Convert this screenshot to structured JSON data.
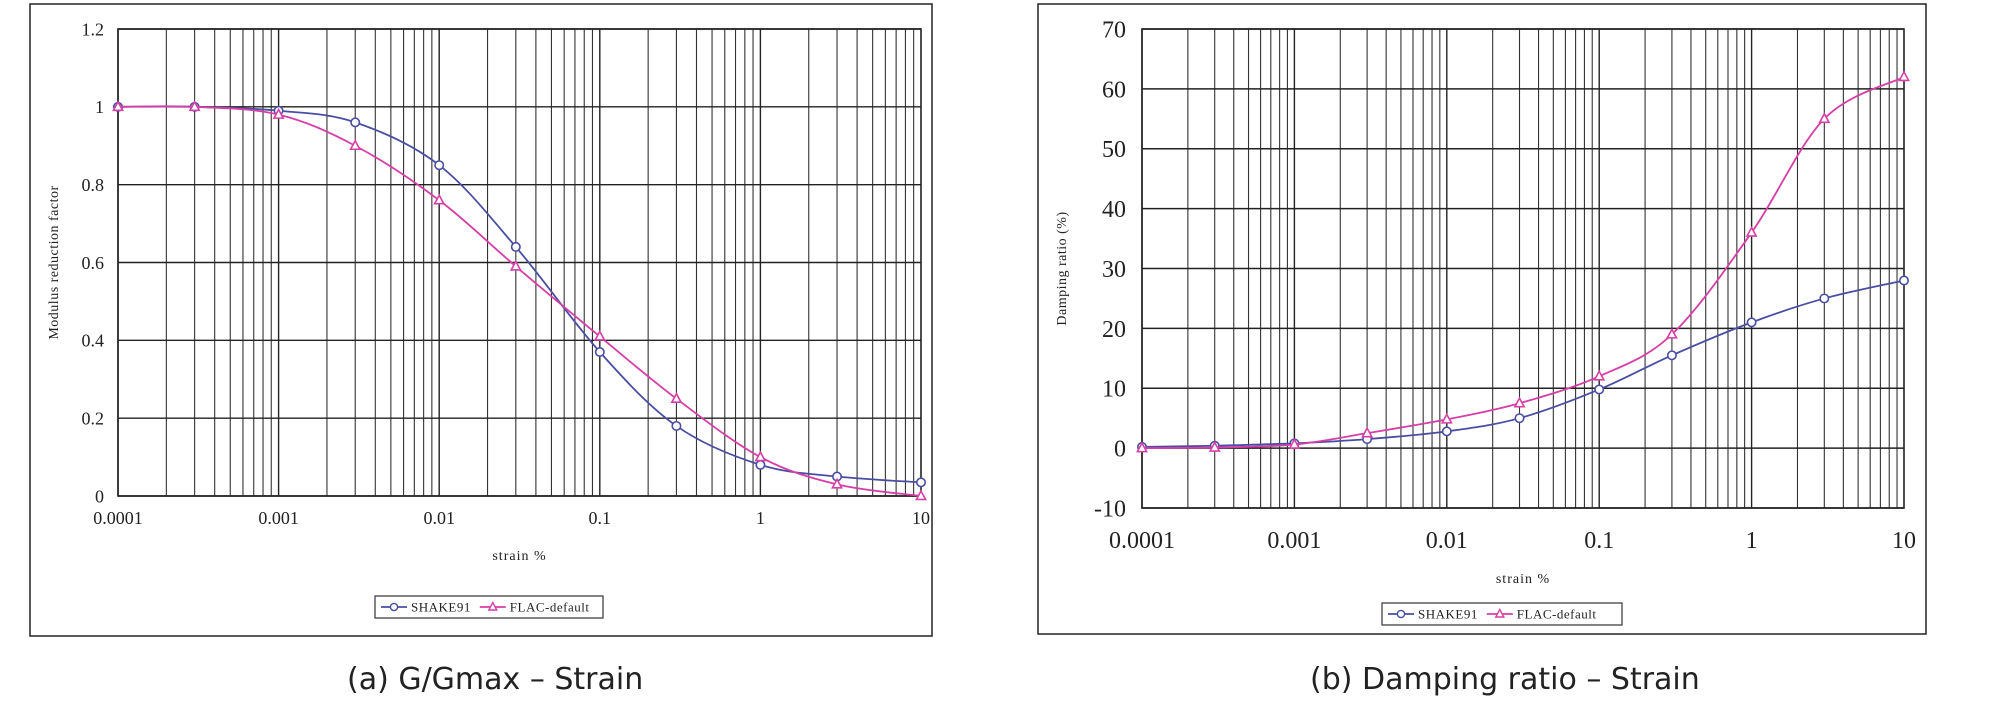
{
  "captions": {
    "left": "(a) G/Gmax – Strain",
    "right": "(b) Damping ratio – Strain"
  },
  "colors": {
    "series_1": "#4a4ea3",
    "series_2": "#d63fa6",
    "grid": "#222222",
    "text": "#222222"
  },
  "chart_data": [
    {
      "type": "line",
      "xscale": "log",
      "xlim": [
        0.0001,
        10
      ],
      "ylim": [
        0,
        1.2
      ],
      "x_ticks": [
        "0.0001",
        "0.001",
        "0.01",
        "0.1",
        "1",
        "10"
      ],
      "y_ticks": [
        "0",
        "0.2",
        "0.4",
        "0.6",
        "0.8",
        "1",
        "1.2"
      ],
      "xlabel": "strain %",
      "ylabel": "Modulus reduction factor",
      "grid": true,
      "legend_position": "bottom",
      "series": [
        {
          "name": "SHAKE91",
          "marker": "circle",
          "x": [
            0.0001,
            0.0003,
            0.001,
            0.003,
            0.01,
            0.03,
            0.1,
            0.3,
            1,
            3,
            10
          ],
          "y": [
            1.0,
            1.0,
            0.99,
            0.96,
            0.85,
            0.64,
            0.37,
            0.18,
            0.08,
            0.05,
            0.035
          ]
        },
        {
          "name": "FLAC-default",
          "marker": "triangle",
          "x": [
            0.0001,
            0.0003,
            0.001,
            0.003,
            0.01,
            0.03,
            0.1,
            0.3,
            1,
            3,
            10
          ],
          "y": [
            1.0,
            1.0,
            0.98,
            0.9,
            0.76,
            0.59,
            0.41,
            0.25,
            0.1,
            0.03,
            0.0
          ]
        }
      ]
    },
    {
      "type": "line",
      "xscale": "log",
      "xlim": [
        0.0001,
        10
      ],
      "ylim": [
        -10,
        70
      ],
      "x_ticks": [
        "0.0001",
        "0.001",
        "0.01",
        "0.1",
        "1",
        "10"
      ],
      "y_ticks": [
        "-10",
        "0",
        "10",
        "20",
        "30",
        "40",
        "50",
        "60",
        "70"
      ],
      "xlabel": "strain %",
      "ylabel": "Damping ratio (%)",
      "grid": true,
      "legend_position": "bottom",
      "series": [
        {
          "name": "SHAKE91",
          "marker": "circle",
          "x": [
            0.0001,
            0.0003,
            0.001,
            0.003,
            0.01,
            0.03,
            0.1,
            0.3,
            1,
            3,
            10
          ],
          "y": [
            0.2,
            0.4,
            0.8,
            1.5,
            2.8,
            5.0,
            9.8,
            15.5,
            21.0,
            25.0,
            28.0
          ]
        },
        {
          "name": "FLAC-default",
          "marker": "triangle",
          "x": [
            0.0001,
            0.0003,
            0.001,
            0.003,
            0.01,
            0.03,
            0.1,
            0.3,
            1,
            3,
            10
          ],
          "y": [
            0.0,
            0.1,
            0.6,
            2.5,
            4.8,
            7.5,
            12.0,
            19.0,
            36.0,
            55.0,
            62.0
          ]
        }
      ]
    }
  ]
}
